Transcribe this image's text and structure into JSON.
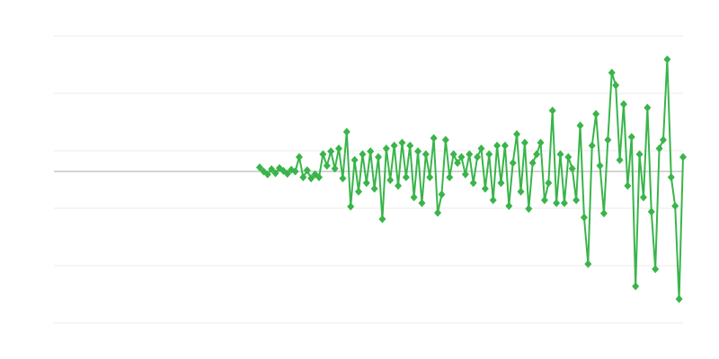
{
  "chart_data": {
    "type": "line",
    "title": "",
    "xlabel": "",
    "ylabel": "",
    "marker": "diamond",
    "grid": true,
    "legend": "none",
    "color": "#39b54a",
    "baseline_color": "#aaaaaa",
    "grid_color": "#ebebeb",
    "ylim": [
      -2.64,
      2.36
    ],
    "yticks": [
      2.36,
      1.36,
      0.36,
      -0.64,
      -1.64,
      -2.64
    ],
    "xlim": [
      -51,
      108
    ],
    "series": [
      {
        "values": [
          0.07,
          0.0,
          -0.05,
          0.04,
          -0.03,
          0.06,
          0.01,
          -0.04,
          0.03,
          0.0,
          0.25,
          -0.1,
          0.02,
          -0.12,
          -0.05,
          -0.1,
          0.3,
          0.1,
          0.35,
          0.05,
          0.4,
          -0.12,
          0.69,
          -0.61,
          0.2,
          -0.35,
          0.3,
          -0.2,
          0.35,
          -0.3,
          0.25,
          -0.83,
          0.4,
          -0.15,
          0.45,
          -0.25,
          0.5,
          -0.1,
          0.45,
          -0.45,
          0.35,
          -0.55,
          0.3,
          -0.1,
          0.58,
          -0.72,
          -0.4,
          0.55,
          -0.1,
          0.3,
          0.15,
          0.25,
          -0.05,
          0.3,
          -0.2,
          0.25,
          0.4,
          -0.3,
          0.3,
          -0.5,
          0.45,
          -0.2,
          0.45,
          -0.6,
          0.15,
          0.65,
          -0.35,
          0.5,
          -0.65,
          0.15,
          0.3,
          0.5,
          -0.5,
          -0.2,
          1.06,
          -0.55,
          0.3,
          -0.55,
          0.25,
          0.05,
          -0.5,
          0.8,
          -0.8,
          -1.61,
          0.45,
          1.0,
          0.1,
          -0.73,
          0.55,
          1.72,
          1.5,
          0.2,
          1.17,
          -0.25,
          0.6,
          -2.0,
          0.3,
          -0.45,
          1.11,
          -0.7,
          -1.7,
          0.4,
          0.55,
          1.95,
          -0.1,
          -0.6,
          -2.22,
          0.25
        ]
      }
    ]
  }
}
